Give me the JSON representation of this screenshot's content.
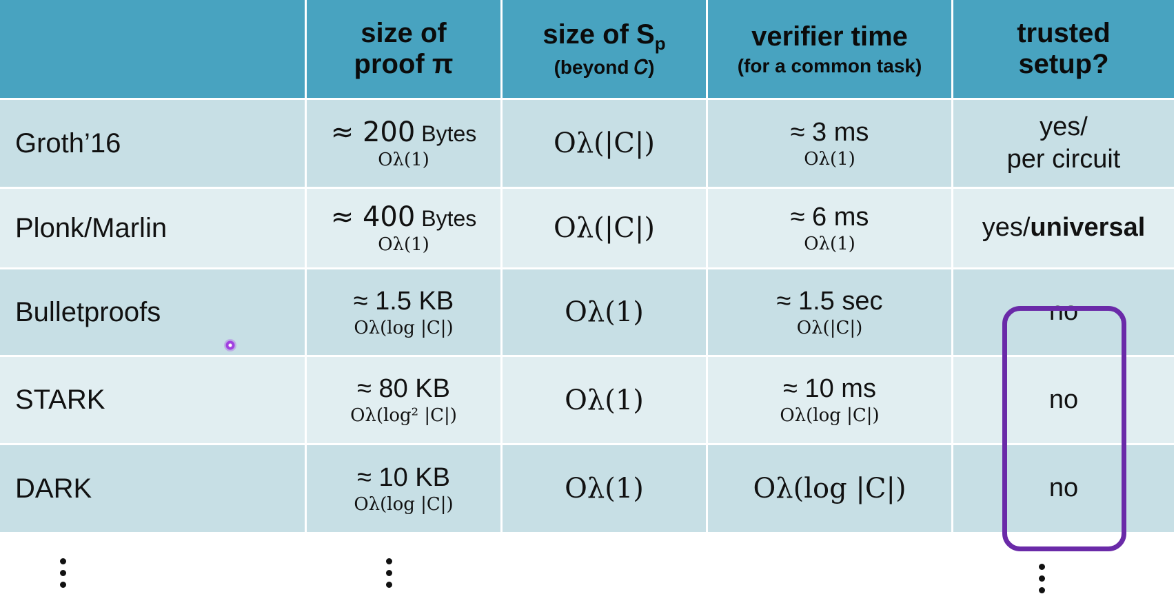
{
  "header": {
    "col1": "",
    "col2_line1": "size of",
    "col2_line2": "proof π",
    "col3_line1": "size of  S",
    "col3_sub_p": "p",
    "col3_line2": "(beyond 𝐶)",
    "col4_line1": "verifier time",
    "col4_line2": "(for a common task)",
    "col5_line1": "trusted",
    "col5_line2": "setup?"
  },
  "rows": [
    {
      "name": "Groth’16",
      "proof_prefix": "≈ ",
      "proof_num": "200",
      "proof_unit": " Bytes",
      "proof_asym": "Oλ(1)",
      "sp": "Oλ(|C|)",
      "verifier_main": "≈ 3 ms",
      "verifier_asym": "Oλ(1)",
      "trusted_line1": "yes/",
      "trusted_line2": "per circuit"
    },
    {
      "name": "Plonk/Marlin",
      "proof_prefix": "≈ ",
      "proof_num": "400",
      "proof_unit": " Bytes",
      "proof_asym": "Oλ(1)",
      "sp": "Oλ(|C|)",
      "verifier_main": "≈ 6 ms",
      "verifier_asym": "Oλ(1)",
      "trusted_plain": "yes/",
      "trusted_bold": "universal"
    },
    {
      "name": "Bulletproofs",
      "proof_main": "≈ 1.5 KB",
      "proof_asym": "Oλ(log |C|)",
      "sp": "Oλ(1)",
      "verifier_main": "≈ 1.5 sec",
      "verifier_asym": "Oλ(|C|)",
      "trusted": "no"
    },
    {
      "name": "STARK",
      "proof_main": "≈ 80 KB",
      "proof_asym": "Oλ(log² |C|)",
      "sp": "Oλ(1)",
      "verifier_main": "≈ 10 ms",
      "verifier_asym": "Oλ(log |C|)",
      "trusted": "no"
    },
    {
      "name": "DARK",
      "proof_main": "≈ 10 KB",
      "proof_asym": "Oλ(log |C|)",
      "sp": "Oλ(1)",
      "verifier_big": "Oλ(log |C|)",
      "trusted": "no"
    }
  ],
  "colors": {
    "header_bg": "#48a3c0",
    "row_dark": "#c7dfe5",
    "row_light": "#e1eef1",
    "highlight": "#6a2aa8"
  }
}
